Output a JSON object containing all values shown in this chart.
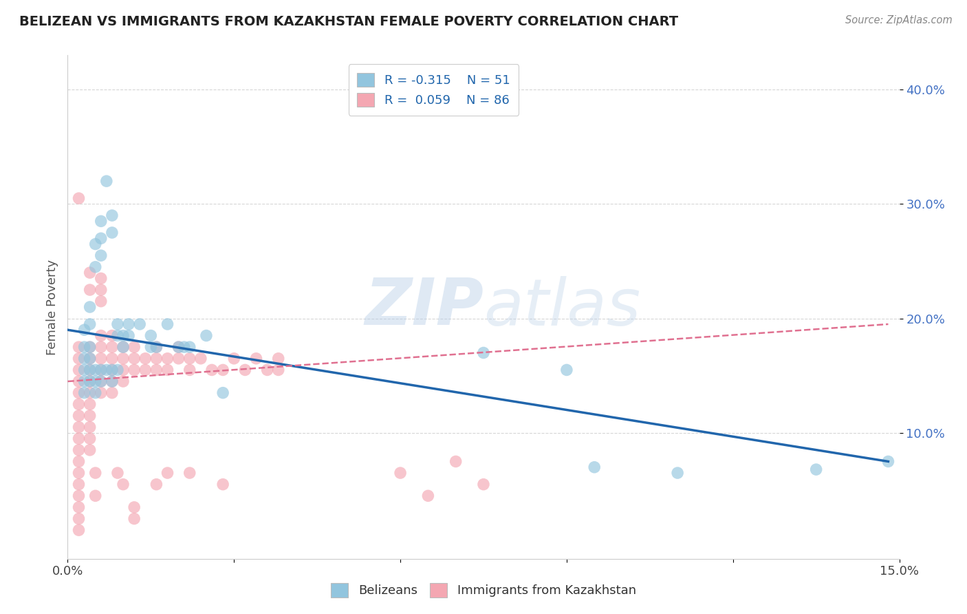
{
  "title": "BELIZEAN VS IMMIGRANTS FROM KAZAKHSTAN FEMALE POVERTY CORRELATION CHART",
  "source": "Source: ZipAtlas.com",
  "ylabel": "Female Poverty",
  "yticks": [
    0.1,
    0.2,
    0.3,
    0.4
  ],
  "ytick_labels": [
    "10.0%",
    "20.0%",
    "30.0%",
    "40.0%"
  ],
  "xlim": [
    0.0,
    0.15
  ],
  "ylim": [
    -0.01,
    0.43
  ],
  "watermark_zip": "ZIP",
  "watermark_atlas": "atlas",
  "legend_r1": "R = -0.315",
  "legend_n1": "N = 51",
  "legend_r2": "R =  0.059",
  "legend_n2": "N = 86",
  "blue_color": "#92c5de",
  "pink_color": "#f4a7b2",
  "blue_line_color": "#2166ac",
  "pink_line_color": "#e07090",
  "blue_scatter": [
    [
      0.003,
      0.19
    ],
    [
      0.003,
      0.175
    ],
    [
      0.003,
      0.165
    ],
    [
      0.004,
      0.21
    ],
    [
      0.004,
      0.195
    ],
    [
      0.004,
      0.175
    ],
    [
      0.004,
      0.165
    ],
    [
      0.005,
      0.265
    ],
    [
      0.005,
      0.245
    ],
    [
      0.006,
      0.285
    ],
    [
      0.006,
      0.27
    ],
    [
      0.006,
      0.255
    ],
    [
      0.007,
      0.32
    ],
    [
      0.008,
      0.29
    ],
    [
      0.008,
      0.275
    ],
    [
      0.009,
      0.195
    ],
    [
      0.009,
      0.185
    ],
    [
      0.01,
      0.185
    ],
    [
      0.01,
      0.175
    ],
    [
      0.011,
      0.195
    ],
    [
      0.011,
      0.185
    ],
    [
      0.013,
      0.195
    ],
    [
      0.015,
      0.185
    ],
    [
      0.015,
      0.175
    ],
    [
      0.016,
      0.175
    ],
    [
      0.018,
      0.195
    ],
    [
      0.02,
      0.175
    ],
    [
      0.021,
      0.175
    ],
    [
      0.022,
      0.175
    ],
    [
      0.025,
      0.185
    ],
    [
      0.028,
      0.135
    ],
    [
      0.003,
      0.155
    ],
    [
      0.003,
      0.145
    ],
    [
      0.003,
      0.135
    ],
    [
      0.004,
      0.155
    ],
    [
      0.004,
      0.145
    ],
    [
      0.005,
      0.155
    ],
    [
      0.005,
      0.145
    ],
    [
      0.005,
      0.135
    ],
    [
      0.006,
      0.155
    ],
    [
      0.006,
      0.145
    ],
    [
      0.007,
      0.155
    ],
    [
      0.008,
      0.155
    ],
    [
      0.008,
      0.145
    ],
    [
      0.009,
      0.155
    ],
    [
      0.075,
      0.17
    ],
    [
      0.09,
      0.155
    ],
    [
      0.095,
      0.07
    ],
    [
      0.11,
      0.065
    ],
    [
      0.135,
      0.068
    ],
    [
      0.148,
      0.075
    ]
  ],
  "pink_scatter": [
    [
      0.002,
      0.305
    ],
    [
      0.002,
      0.175
    ],
    [
      0.002,
      0.165
    ],
    [
      0.002,
      0.155
    ],
    [
      0.002,
      0.145
    ],
    [
      0.002,
      0.135
    ],
    [
      0.002,
      0.125
    ],
    [
      0.002,
      0.115
    ],
    [
      0.002,
      0.105
    ],
    [
      0.002,
      0.095
    ],
    [
      0.002,
      0.085
    ],
    [
      0.002,
      0.075
    ],
    [
      0.002,
      0.065
    ],
    [
      0.002,
      0.055
    ],
    [
      0.002,
      0.045
    ],
    [
      0.002,
      0.035
    ],
    [
      0.002,
      0.025
    ],
    [
      0.002,
      0.015
    ],
    [
      0.004,
      0.24
    ],
    [
      0.004,
      0.225
    ],
    [
      0.004,
      0.175
    ],
    [
      0.004,
      0.165
    ],
    [
      0.004,
      0.155
    ],
    [
      0.004,
      0.145
    ],
    [
      0.004,
      0.135
    ],
    [
      0.004,
      0.125
    ],
    [
      0.004,
      0.115
    ],
    [
      0.004,
      0.105
    ],
    [
      0.004,
      0.095
    ],
    [
      0.004,
      0.085
    ],
    [
      0.006,
      0.235
    ],
    [
      0.006,
      0.225
    ],
    [
      0.006,
      0.215
    ],
    [
      0.006,
      0.185
    ],
    [
      0.006,
      0.175
    ],
    [
      0.006,
      0.165
    ],
    [
      0.006,
      0.155
    ],
    [
      0.006,
      0.145
    ],
    [
      0.006,
      0.135
    ],
    [
      0.008,
      0.185
    ],
    [
      0.008,
      0.175
    ],
    [
      0.008,
      0.165
    ],
    [
      0.008,
      0.155
    ],
    [
      0.008,
      0.145
    ],
    [
      0.008,
      0.135
    ],
    [
      0.01,
      0.175
    ],
    [
      0.01,
      0.165
    ],
    [
      0.01,
      0.155
    ],
    [
      0.01,
      0.145
    ],
    [
      0.012,
      0.175
    ],
    [
      0.012,
      0.165
    ],
    [
      0.012,
      0.155
    ],
    [
      0.014,
      0.165
    ],
    [
      0.014,
      0.155
    ],
    [
      0.016,
      0.175
    ],
    [
      0.016,
      0.165
    ],
    [
      0.016,
      0.155
    ],
    [
      0.018,
      0.165
    ],
    [
      0.018,
      0.155
    ],
    [
      0.02,
      0.175
    ],
    [
      0.02,
      0.165
    ],
    [
      0.022,
      0.165
    ],
    [
      0.022,
      0.155
    ],
    [
      0.024,
      0.165
    ],
    [
      0.026,
      0.155
    ],
    [
      0.028,
      0.155
    ],
    [
      0.03,
      0.165
    ],
    [
      0.032,
      0.155
    ],
    [
      0.034,
      0.165
    ],
    [
      0.036,
      0.155
    ],
    [
      0.038,
      0.165
    ],
    [
      0.038,
      0.155
    ],
    [
      0.005,
      0.065
    ],
    [
      0.005,
      0.045
    ],
    [
      0.009,
      0.065
    ],
    [
      0.01,
      0.055
    ],
    [
      0.012,
      0.035
    ],
    [
      0.012,
      0.025
    ],
    [
      0.016,
      0.055
    ],
    [
      0.018,
      0.065
    ],
    [
      0.022,
      0.065
    ],
    [
      0.028,
      0.055
    ],
    [
      0.06,
      0.065
    ],
    [
      0.065,
      0.045
    ],
    [
      0.07,
      0.075
    ],
    [
      0.075,
      0.055
    ]
  ],
  "blue_trendline_x": [
    0.0,
    0.148
  ],
  "blue_trendline_y": [
    0.19,
    0.075
  ],
  "pink_trendline_x": [
    0.0,
    0.148
  ],
  "pink_trendline_y": [
    0.145,
    0.195
  ]
}
